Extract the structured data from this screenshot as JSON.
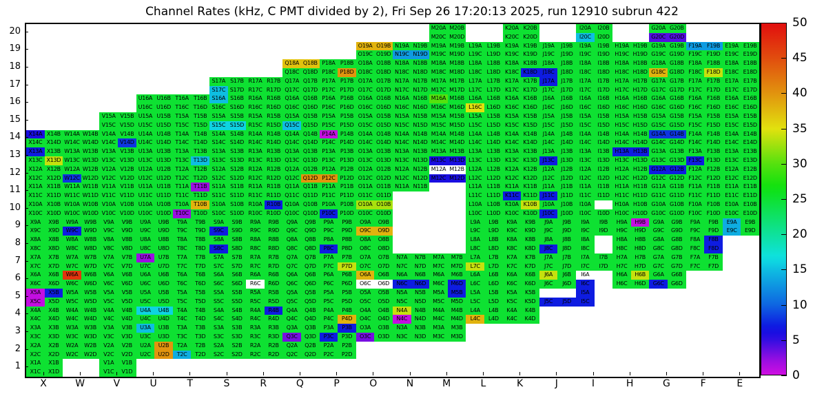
{
  "title": "Channel Rates (kHz, C PMT divided by 2), Fri Sep 26 17:20:13 2025, run 12910 subrun 422",
  "chart_data": {
    "type": "heatmap",
    "title": "Channel Rates (kHz, C PMT divided by 2), Fri Sep 26 17:20:13 2025, run 12910 subrun 422",
    "unit": "kHz",
    "columns": [
      "X",
      "W",
      "V",
      "U",
      "T",
      "S",
      "R",
      "Q",
      "P",
      "O",
      "N",
      "M",
      "L",
      "K",
      "J",
      "I",
      "H",
      "G",
      "F",
      "E"
    ],
    "rows": [
      20,
      19,
      18,
      17,
      16,
      15,
      14,
      13,
      12,
      11,
      10,
      9,
      8,
      7,
      6,
      5,
      4,
      3,
      2,
      1
    ],
    "cell_subchannels": [
      "A",
      "B",
      "C",
      "D"
    ],
    "colorbar": {
      "min": 0,
      "max": 50,
      "ticks": [
        0,
        5,
        10,
        15,
        20,
        25,
        30,
        35,
        40,
        45,
        50
      ]
    },
    "default_value": 25,
    "present": {
      "20": [
        "M",
        "K",
        "I",
        "G"
      ],
      "19": [
        "O",
        "N",
        "M",
        "L",
        "K",
        "J",
        "I",
        "H",
        "G",
        "F",
        "E"
      ],
      "18": [
        "Q",
        "P",
        "O",
        "N",
        "M",
        "L",
        "K",
        "J",
        "I",
        "H",
        "G",
        "F",
        "E"
      ],
      "17": [
        "S",
        "R",
        "Q",
        "P",
        "O",
        "N",
        "M",
        "L",
        "K",
        "J",
        "I",
        "H",
        "G",
        "F",
        "E"
      ],
      "16": [
        "U",
        "T",
        "S",
        "R",
        "Q",
        "P",
        "O",
        "N",
        "M",
        "L",
        "K",
        "J",
        "I",
        "H",
        "G",
        "F",
        "E"
      ],
      "15": [
        "V",
        "U",
        "T",
        "S",
        "R",
        "Q",
        "P",
        "O",
        "N",
        "M",
        "L",
        "K",
        "J",
        "I",
        "H",
        "G",
        "F",
        "E"
      ],
      "14": [
        "X",
        "W",
        "V",
        "U",
        "T",
        "S",
        "R",
        "Q",
        "P",
        "O",
        "N",
        "M",
        "L",
        "K",
        "J",
        "I",
        "H",
        "G",
        "F",
        "E"
      ],
      "13": [
        "X",
        "W",
        "V",
        "U",
        "T",
        "S",
        "R",
        "Q",
        "P",
        "O",
        "N",
        "M",
        "L",
        "K",
        "J",
        "I",
        "H",
        "G",
        "F",
        "E"
      ],
      "12": [
        "X",
        "W",
        "V",
        "U",
        "T",
        "S",
        "R",
        "Q",
        "P",
        "O",
        "N",
        "M",
        "L",
        "K",
        "J",
        "I",
        "H",
        "G",
        "F",
        "E"
      ],
      "11": [
        "X",
        "W",
        "V",
        "U",
        "T",
        "S",
        "R",
        "Q",
        "P",
        "O",
        "N",
        "L",
        "K",
        "J",
        "I",
        "H",
        "G",
        "F",
        "E"
      ],
      "10": [
        "X",
        "W",
        "V",
        "U",
        "T",
        "S",
        "R",
        "Q",
        "P",
        "O",
        "L",
        "K",
        "J",
        "I",
        "H",
        "G",
        "F",
        "E"
      ],
      "9": [
        "X",
        "W",
        "V",
        "U",
        "T",
        "S",
        "R",
        "Q",
        "P",
        "O",
        "L",
        "K",
        "J",
        "I",
        "H",
        "G",
        "F",
        "E"
      ],
      "8": [
        "X",
        "W",
        "V",
        "U",
        "T",
        "S",
        "R",
        "Q",
        "P",
        "O",
        "L",
        "K",
        "J",
        "I",
        "H",
        "G",
        "F"
      ],
      "7": [
        "X",
        "W",
        "V",
        "U",
        "T",
        "S",
        "R",
        "Q",
        "P",
        "O",
        "N",
        "M",
        "L",
        "K",
        "J",
        "I",
        "H",
        "G",
        "F"
      ],
      "6": [
        "X",
        "W",
        "V",
        "U",
        "T",
        "S",
        "R",
        "Q",
        "P",
        "O",
        "N",
        "M",
        "L",
        "K",
        "J",
        "I",
        "H",
        "G"
      ],
      "5": [
        "X",
        "W",
        "V",
        "U",
        "T",
        "S",
        "R",
        "Q",
        "P",
        "O",
        "N",
        "M",
        "L",
        "K",
        "J",
        "I"
      ],
      "4": [
        "X",
        "W",
        "V",
        "U",
        "T",
        "S",
        "R",
        "Q",
        "P",
        "O",
        "N",
        "M",
        "L",
        "K"
      ],
      "3": [
        "X",
        "W",
        "V",
        "U",
        "T",
        "S",
        "R",
        "Q",
        "P",
        "O",
        "N",
        "M"
      ],
      "2": [
        "X",
        "W",
        "V",
        "U",
        "T",
        "S",
        "R",
        "Q",
        "P"
      ],
      "1": [
        "X",
        "V"
      ]
    },
    "absent_cells": [
      "N11C",
      "N11D",
      "J5A",
      "J5B",
      "I5B",
      "I5D",
      "I6B",
      "I6D",
      "I8B",
      "I8D",
      "I10B"
    ],
    "white_cells": [
      "M12A",
      "M12B",
      "O6C",
      "O6D",
      "R6C",
      "I6A"
    ],
    "value_overrides": {
      "I20C": 15,
      "G20C": 4,
      "G20D": 4,
      "O19A": 38,
      "O19B": 38,
      "N19C": 13,
      "N19D": 13,
      "F19A": 13,
      "F19B": 13,
      "Q18A": 37,
      "Q18B": 37,
      "P18D": 40,
      "K18D": 7,
      "J18C": 7,
      "G18C": 38,
      "F18D": 34,
      "S17C": 15,
      "J17A": 7,
      "S16A": 15,
      "M16A": 30,
      "L16C": 35,
      "S15C": 16,
      "S15D": 16,
      "Q15C": 15,
      "X14A": 6,
      "V14D": 8,
      "P14A": 0.5,
      "G14A": 8,
      "G14B": 8,
      "X13A": 7,
      "X13D": 34,
      "T13D": 15,
      "M13C": 6,
      "M13D": 6,
      "J13C": 7,
      "H13A": 7,
      "H13B": 7,
      "F13C": 7,
      "W12C": 8,
      "Q12D": 40,
      "P12C": 40,
      "M12C": 6,
      "M12D": 6,
      "G12A": 7,
      "G12B": 7,
      "T11B": 2,
      "K11C": 7,
      "J11C": 7,
      "T10B": 38,
      "T10C": 2,
      "R10B": 7,
      "P10C": 7,
      "O10A": 33,
      "O10B": 33,
      "K10B": 34,
      "J10C": 7,
      "W9C": 7,
      "S9C": 7,
      "O9C": 38,
      "O9D": 38,
      "H9B": 0.5,
      "E9A": 14,
      "E9C": 14,
      "S8C": 7,
      "P8C": 7,
      "J8C": 7,
      "F8B": 7,
      "F8D": 7,
      "U7A": 2,
      "P7D": 34,
      "L7C": 34,
      "W6A": 47,
      "O6A": 38,
      "N6C": 7,
      "N6D": 7,
      "M6D": 7,
      "J6A": 34,
      "I6C": 7,
      "H6B": 34,
      "G6C": 7,
      "X5A": 0.5,
      "X5B": 7,
      "X5C": 0.5,
      "M5B": 7,
      "J5C": 7,
      "J5D": 7,
      "I5A": 7,
      "I5C": 7,
      "U4A": 16,
      "U4B": 16,
      "R4B": 7,
      "P4D": 38,
      "N4A": 34,
      "N4C": 0.5,
      "L4C": 38,
      "U3A": 15,
      "Q3C": 3,
      "P3B": 7,
      "P3C": 7,
      "O3C": 3,
      "U2B": 40,
      "U2D": 40,
      "T2C": 14
    }
  }
}
